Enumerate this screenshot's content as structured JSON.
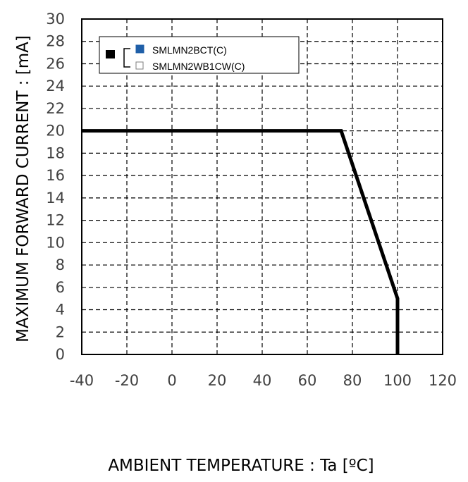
{
  "chart_data": {
    "type": "line",
    "title": "",
    "xlabel": "AMBIENT TEMPERATURE : Ta [ºC]",
    "ylabel": "MAXIMUM FORWARD CURRENT :  [mA]",
    "xlim": [
      -40,
      120
    ],
    "ylim": [
      0,
      30
    ],
    "x_ticks": [
      -40,
      -20,
      0,
      20,
      40,
      60,
      80,
      100,
      120
    ],
    "y_ticks": [
      0,
      2,
      4,
      6,
      8,
      10,
      12,
      14,
      16,
      18,
      20,
      22,
      24,
      26,
      28,
      30
    ],
    "x_gridlines": [
      -40,
      -20,
      0,
      20,
      40,
      60,
      80,
      100,
      120
    ],
    "y_gridlines": [
      2,
      4,
      6,
      8,
      10,
      12,
      14,
      16,
      18,
      20,
      22,
      24,
      26,
      28
    ],
    "grid": true,
    "grid_style": "dashed",
    "legend": {
      "placement": "top-left",
      "entries": [
        {
          "label": "SMLMN2BCT(C)",
          "marker_color": "#1f5fa8"
        },
        {
          "label": "SMLMN2WB1CW(C)",
          "marker_color": "#ffffff"
        }
      ]
    },
    "series": [
      {
        "color": "#000000",
        "points": [
          [
            -40,
            20
          ],
          [
            75,
            20
          ],
          [
            100,
            5
          ],
          [
            100,
            0
          ]
        ]
      }
    ]
  }
}
